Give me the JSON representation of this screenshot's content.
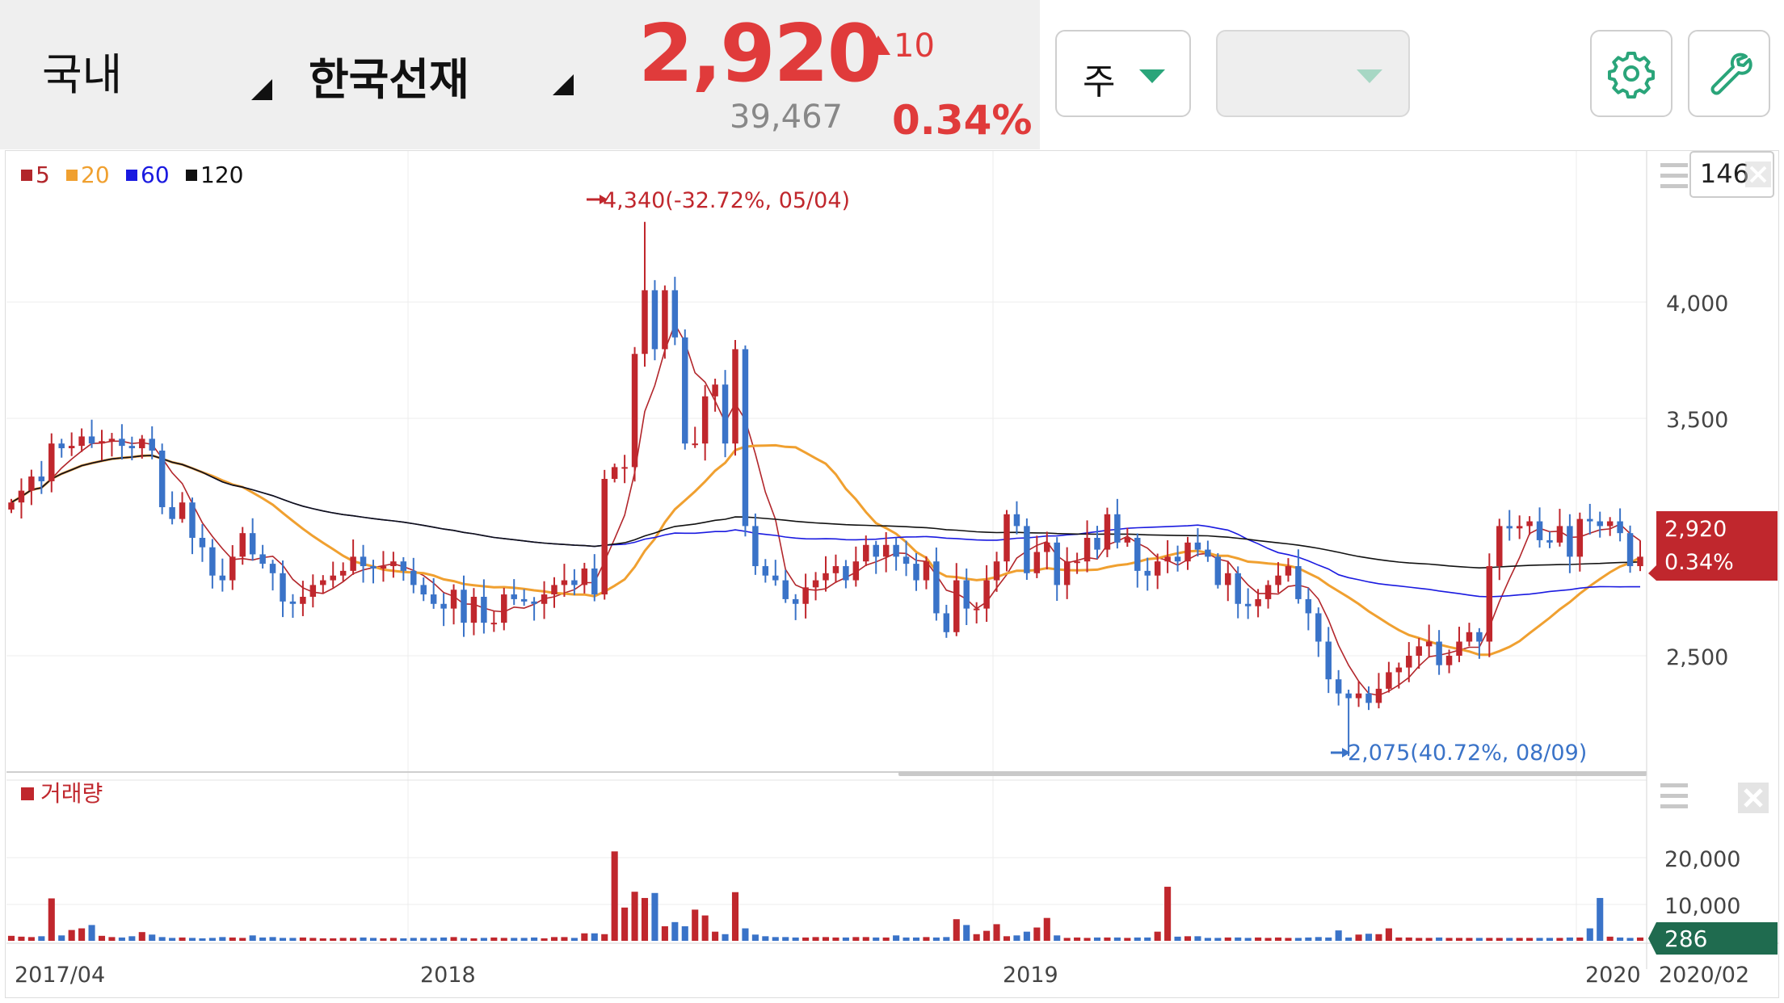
{
  "header": {
    "market_label": "국내",
    "stock_name": "한국선재",
    "price": "2,920",
    "change": "10",
    "volume": "39,467",
    "change_pct": "0.34%",
    "period_label": "주",
    "second_select": ""
  },
  "colors": {
    "up": "#c0272d",
    "down": "#3a73c8",
    "up_text": "#e03b3b",
    "ma5": "#b2262b",
    "ma20": "#f0a030",
    "ma60": "#1a1ae0",
    "ma120": "#111111",
    "volume_badge": "#1f6b4f",
    "accent": "#2aa57a"
  },
  "icons": {
    "settings": "gear-icon",
    "tools": "wrench-icon"
  },
  "price_panel": {
    "legend": [
      {
        "label": "5",
        "color": "#b2262b"
      },
      {
        "label": "20",
        "color": "#f0a030"
      },
      {
        "label": "60",
        "color": "#1a1ae0"
      },
      {
        "label": "120",
        "color": "#111111"
      }
    ],
    "count_box": "146",
    "current_price_tag": "2,920",
    "current_pct_tag": "0.34%",
    "high_annotation": "4,340(-32.72%, 05/04)",
    "low_annotation": "2,075(40.72%, 08/09)"
  },
  "volume_panel": {
    "legend": "거래량",
    "current_volume_tag": "286"
  },
  "chart_data": [
    {
      "type": "candlestick",
      "title": "",
      "x_labels": [
        "2017/04",
        "2018",
        "2019",
        "2020",
        "2020/02"
      ],
      "y_ticks": [
        "4,000",
        "3,500",
        "2,500"
      ],
      "ylim": [
        2000,
        4650
      ],
      "high": 4340,
      "low": 2075,
      "last_close": 2920,
      "close": [
        3150,
        3200,
        3260,
        3240,
        3400,
        3380,
        3390,
        3430,
        3400,
        3410,
        3420,
        3390,
        3380,
        3420,
        3370,
        3130,
        3080,
        3150,
        3000,
        2960,
        2840,
        2820,
        2920,
        3020,
        2930,
        2890,
        2850,
        2730,
        2720,
        2750,
        2800,
        2820,
        2840,
        2860,
        2920,
        2880,
        2870,
        2880,
        2900,
        2860,
        2800,
        2760,
        2720,
        2700,
        2780,
        2640,
        2750,
        2640,
        2640,
        2760,
        2740,
        2730,
        2720,
        2760,
        2800,
        2820,
        2800,
        2870,
        2760,
        3250,
        3300,
        3300,
        3780,
        4050,
        3800,
        4050,
        3850,
        3400,
        3400,
        3600,
        3650,
        3400,
        3800,
        3050,
        2880,
        2840,
        2820,
        2740,
        2720,
        2790,
        2820,
        2850,
        2880,
        2820,
        2900,
        2970,
        2920,
        2970,
        2920,
        2890,
        2820,
        2900,
        2680,
        2600,
        2820,
        2700,
        2700,
        2820,
        2900,
        3100,
        3050,
        2850,
        2940,
        2980,
        2800,
        2900,
        2900,
        3000,
        2950,
        3100,
        2980,
        3000,
        2860,
        2840,
        2900,
        2920,
        2900,
        2980,
        2950,
        2920,
        2800,
        2850,
        2720,
        2710,
        2740,
        2800,
        2840,
        2880,
        2740,
        2680,
        2560,
        2400,
        2340,
        2320,
        2340,
        2300,
        2360,
        2430,
        2450,
        2500,
        2540,
        2560,
        2460,
        2500,
        2560,
        2600,
        2560,
        2880,
        3050,
        3040,
        3050,
        3070,
        2990,
        2980,
        3050,
        2920,
        3080,
        3070,
        3050,
        3070,
        3020,
        2880,
        2920
      ]
    },
    {
      "type": "line",
      "title": "",
      "series": [
        {
          "name": "5"
        },
        {
          "name": "20"
        },
        {
          "name": "60"
        },
        {
          "name": "120"
        }
      ]
    },
    {
      "type": "bar",
      "title": "",
      "series": [
        {
          "name": "거래량"
        }
      ],
      "y_ticks": [
        "20,000",
        "10,000"
      ],
      "ylim": [
        0,
        32000
      ],
      "values": [
        1200,
        1000,
        900,
        1100,
        10200,
        1300,
        2600,
        3000,
        3800,
        1200,
        900,
        800,
        1100,
        2100,
        1500,
        900,
        700,
        800,
        700,
        600,
        700,
        900,
        800,
        700,
        1300,
        800,
        900,
        700,
        700,
        800,
        700,
        600,
        600,
        700,
        700,
        800,
        700,
        600,
        700,
        600,
        700,
        700,
        700,
        800,
        900,
        700,
        600,
        700,
        800,
        700,
        700,
        700,
        800,
        600,
        900,
        900,
        700,
        1800,
        1800,
        1600,
        21500,
        8000,
        11800,
        10300,
        11500,
        3500,
        4500,
        3500,
        7500,
        6100,
        2200,
        1600,
        11700,
        3000,
        1500,
        1100,
        900,
        900,
        800,
        800,
        900,
        900,
        800,
        800,
        900,
        900,
        800,
        800,
        1300,
        800,
        800,
        900,
        800,
        900,
        5200,
        3800,
        1600,
        2400,
        4000,
        1100,
        1300,
        2200,
        3200,
        5500,
        1300,
        700,
        800,
        700,
        800,
        800,
        800,
        700,
        800,
        800,
        2200,
        13000,
        1000,
        1100,
        1100,
        700,
        700,
        800,
        800,
        700,
        800,
        700,
        800,
        700,
        700,
        800,
        900,
        800,
        2500,
        800,
        1500,
        1700,
        1600,
        3000,
        800,
        800,
        700,
        700,
        800,
        700,
        700,
        700,
        700,
        700,
        700,
        700,
        700,
        700,
        700,
        700,
        700,
        800,
        800,
        3000,
        10300,
        1000,
        800,
        700,
        800,
        900,
        700,
        700,
        800,
        900,
        700,
        700,
        700,
        700,
        700
      ]
    }
  ]
}
